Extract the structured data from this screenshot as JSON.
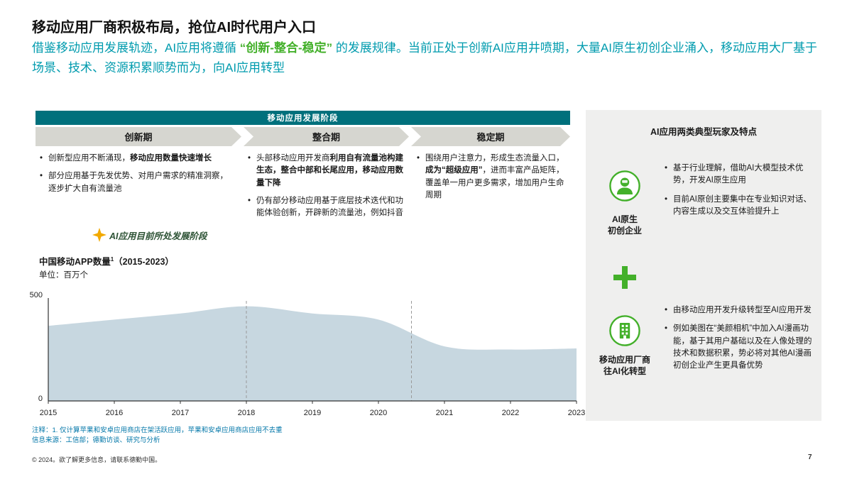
{
  "colors": {
    "teal_subtitle": "#009BAE",
    "green_accent": "#43B02A",
    "dark_teal_bar": "#00707C",
    "chevron_gray": "#D6D6D0",
    "panel_gray": "#EFEFEE",
    "footnote_blue": "#0076A8",
    "star_gold": "#F2A900",
    "annotation_green": "#2C5234"
  },
  "header": {
    "title": "移动应用厂商积极布局，抢位AI时代用户入口",
    "subtitle_runs": [
      {
        "t": "借鉴移动应用发展轨迹，AI应用将遵循 "
      },
      {
        "t": "“创新-整合-稳定”",
        "b": true,
        "c": "#43B02A"
      },
      {
        "t": " 的发展规律。当前正处于创新AI应用井喷期，大量AI原生初创企业涌入，移动应用大厂基于场景、技术、资源积累顺势而为，向AI应用转型"
      }
    ]
  },
  "stages_diagram": {
    "bar_title": "移动应用发展阶段",
    "stages": [
      {
        "label": "创新期",
        "bullets": [
          [
            {
              "t": "创新型应用不断涌现，"
            },
            {
              "t": "移动应用数量快速增长",
              "b": true
            }
          ],
          [
            {
              "t": "部分应用基于先发优势、对用户需求的精准洞察，逐步扩大自有流量池"
            }
          ]
        ]
      },
      {
        "label": "整合期",
        "bullets": [
          [
            {
              "t": "头部移动应用开发商"
            },
            {
              "t": "利用自有流量池构建生态，整合中部和长尾应用，移动应用数量下降",
              "b": true
            }
          ],
          [
            {
              "t": "仍有部分移动应用基于底层技术迭代和功能体验创新，开辟新的流量池，例如抖音"
            }
          ]
        ]
      },
      {
        "label": "稳定期",
        "bullets": [
          [
            {
              "t": "围绕用户注意力，形成生态流量入口，"
            },
            {
              "t": "成为“超级应用”",
              "b": true
            },
            {
              "t": "，进而丰富产品矩阵，覆盖单一用户更多需求，增加用户生命周期"
            }
          ]
        ]
      }
    ],
    "current_stage_note": "AI应用目前所处发展阶段",
    "star_icon": "star-icon"
  },
  "chart_data": {
    "type": "area",
    "title_main": "中国移动APP数量",
    "title_sup": "1",
    "title_range": "（2015-2023）",
    "unit_label": "单位：百万个",
    "x": [
      2015,
      2016,
      2017,
      2018,
      2019,
      2020,
      2021,
      2022,
      2023
    ],
    "values": [
      365,
      395,
      425,
      460,
      425,
      395,
      265,
      250,
      255
    ],
    "ylim": [
      0,
      500
    ],
    "ymax_label": "500",
    "ymin_label": "0",
    "phase_boundaries_x": [
      2018,
      2020.5
    ],
    "grid": false,
    "fill_color": "#C7D7E0"
  },
  "right_panel": {
    "header": "AI应用两类典型玩家及特点",
    "plus_icon": "plus-icon",
    "players": [
      {
        "icon": "ai-startup-person-icon",
        "label_lines": [
          "AI原生",
          "初创企业"
        ],
        "bullets": [
          "基于行业理解，借助AI大模型技术优势，开发AI原生应用",
          "目前AI原创主要集中在专业知识对话、内容生成以及交互体验提升上"
        ]
      },
      {
        "icon": "mobile-vendor-building-icon",
        "label_lines": [
          "移动应用厂商",
          "往AI化转型"
        ],
        "bullets": [
          "由移动应用开发升级转型至AI应用开发",
          "例如美图在“美颜相机”中加入AI漫画功能，基于其用户基础以及在人像处理的技术和数据积累，势必将对其他AI漫画初创企业产生更具备优势"
        ]
      }
    ]
  },
  "footer": {
    "note": "注释：1. 仅计算苹果和安卓应用商店在架活跃应用，苹果和安卓应用商店应用不去重",
    "source": "信息来源：工信部；德勤访谈、研究与分析",
    "copyright": "© 2024。欲了解更多信息，请联系德勤中国。",
    "page_number": "7"
  }
}
